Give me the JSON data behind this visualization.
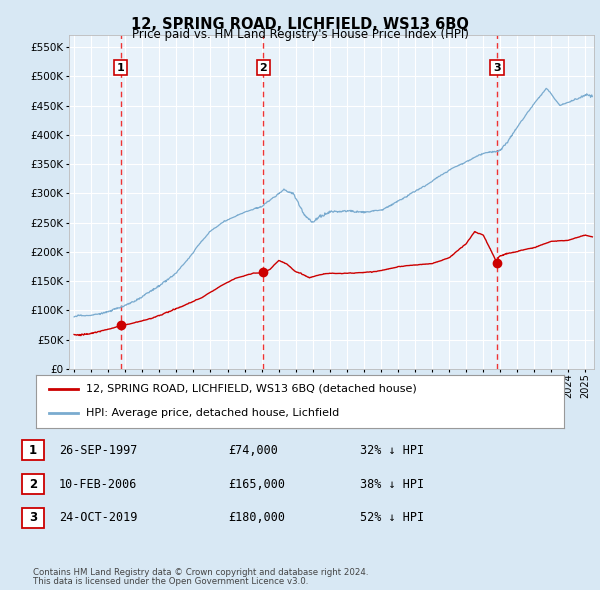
{
  "title": "12, SPRING ROAD, LICHFIELD, WS13 6BQ",
  "subtitle": "Price paid vs. HM Land Registry's House Price Index (HPI)",
  "ylim": [
    0,
    570000
  ],
  "yticks": [
    0,
    50000,
    100000,
    150000,
    200000,
    250000,
    300000,
    350000,
    400000,
    450000,
    500000,
    550000
  ],
  "xlim_start": 1994.7,
  "xlim_end": 2025.5,
  "bg_color": "#d8e8f4",
  "plot_bg": "#e8f2fa",
  "grid_color": "#ffffff",
  "sale_color": "#cc0000",
  "hpi_color": "#7aabcf",
  "vline_color": "#ee3333",
  "purchases": [
    {
      "num": 1,
      "year_dec": 1997.73,
      "price": 74000,
      "date": "26-SEP-1997",
      "pct": "32% ↓ HPI"
    },
    {
      "num": 2,
      "year_dec": 2006.11,
      "price": 165000,
      "date": "10-FEB-2006",
      "pct": "38% ↓ HPI"
    },
    {
      "num": 3,
      "year_dec": 2019.81,
      "price": 180000,
      "date": "24-OCT-2019",
      "pct": "52% ↓ HPI"
    }
  ],
  "legend_label_sale": "12, SPRING ROAD, LICHFIELD, WS13 6BQ (detached house)",
  "legend_label_hpi": "HPI: Average price, detached house, Lichfield",
  "footer1": "Contains HM Land Registry data © Crown copyright and database right 2024.",
  "footer2": "This data is licensed under the Open Government Licence v3.0.",
  "table_rows": [
    {
      "num": 1,
      "date": "26-SEP-1997",
      "price": "£74,000",
      "pct": "32% ↓ HPI"
    },
    {
      "num": 2,
      "date": "10-FEB-2006",
      "price": "£165,000",
      "pct": "38% ↓ HPI"
    },
    {
      "num": 3,
      "date": "24-OCT-2019",
      "price": "£180,000",
      "pct": "52% ↓ HPI"
    }
  ],
  "hpi_anchor_years": [
    1995.0,
    1996.0,
    1997.0,
    1998.0,
    1999.0,
    2000.0,
    2001.0,
    2002.0,
    2003.0,
    2004.0,
    2005.0,
    2006.0,
    2007.3,
    2007.9,
    2008.5,
    2009.0,
    2010.0,
    2011.0,
    2012.0,
    2013.0,
    2014.0,
    2015.0,
    2016.0,
    2017.0,
    2018.0,
    2019.0,
    2020.0,
    2021.0,
    2022.0,
    2022.7,
    2023.5,
    2024.0,
    2025.0,
    2025.4
  ],
  "hpi_anchor_vals": [
    88000,
    92000,
    100000,
    110000,
    125000,
    145000,
    165000,
    200000,
    235000,
    255000,
    268000,
    275000,
    305000,
    295000,
    260000,
    248000,
    265000,
    268000,
    265000,
    272000,
    288000,
    305000,
    320000,
    340000,
    355000,
    370000,
    375000,
    415000,
    455000,
    480000,
    450000,
    455000,
    465000,
    460000
  ],
  "sale_anchor_years": [
    1995.0,
    1996.0,
    1997.0,
    1997.73,
    1998.5,
    1999.5,
    2000.5,
    2001.5,
    2002.5,
    2003.5,
    2004.5,
    2005.5,
    2006.11,
    2006.5,
    2007.0,
    2007.5,
    2008.0,
    2008.8,
    2009.3,
    2010.0,
    2011.0,
    2012.0,
    2013.0,
    2014.0,
    2015.0,
    2016.0,
    2017.0,
    2018.0,
    2018.5,
    2019.0,
    2019.81,
    2019.9,
    2020.3,
    2021.0,
    2022.0,
    2023.0,
    2024.0,
    2025.0,
    2025.4
  ],
  "sale_anchor_vals": [
    60000,
    62000,
    68000,
    74000,
    78000,
    85000,
    95000,
    108000,
    122000,
    140000,
    155000,
    163000,
    165000,
    170000,
    185000,
    178000,
    165000,
    155000,
    160000,
    163000,
    163000,
    165000,
    168000,
    175000,
    178000,
    180000,
    190000,
    215000,
    235000,
    228000,
    180000,
    190000,
    195000,
    200000,
    208000,
    218000,
    220000,
    228000,
    225000
  ]
}
